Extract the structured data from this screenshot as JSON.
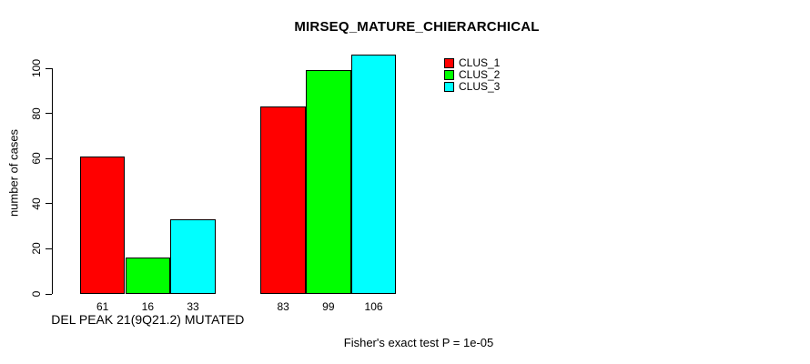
{
  "chart_data": {
    "type": "bar",
    "title": "MIRSEQ_MATURE_CHIERARCHICAL",
    "ylabel": "number of cases",
    "xlabel": "",
    "footer": "Fisher's exact test P = 1e-05",
    "categories": [
      "DEL PEAK 21(9Q21.2) MUTATED",
      ""
    ],
    "series": [
      {
        "name": "CLUS_1",
        "color": "#FF0000",
        "values": [
          61,
          83
        ]
      },
      {
        "name": "CLUS_2",
        "color": "#00FF00",
        "values": [
          16,
          99
        ]
      },
      {
        "name": "CLUS_3",
        "color": "#00FFFF",
        "values": [
          33,
          106
        ]
      }
    ],
    "yticks": [
      0,
      20,
      40,
      60,
      80,
      100
    ],
    "ylim": [
      0,
      107
    ],
    "bar_value_labels": [
      [
        61,
        16,
        33
      ],
      [
        83,
        99,
        106
      ]
    ],
    "legend_entries": [
      "CLUS_1",
      "CLUS_2",
      "CLUS_3"
    ],
    "legend_position": "top-right",
    "grid": false,
    "background_color": "#FFFFFF",
    "axis_color": "#000000",
    "bar_border_color": "#000000"
  }
}
